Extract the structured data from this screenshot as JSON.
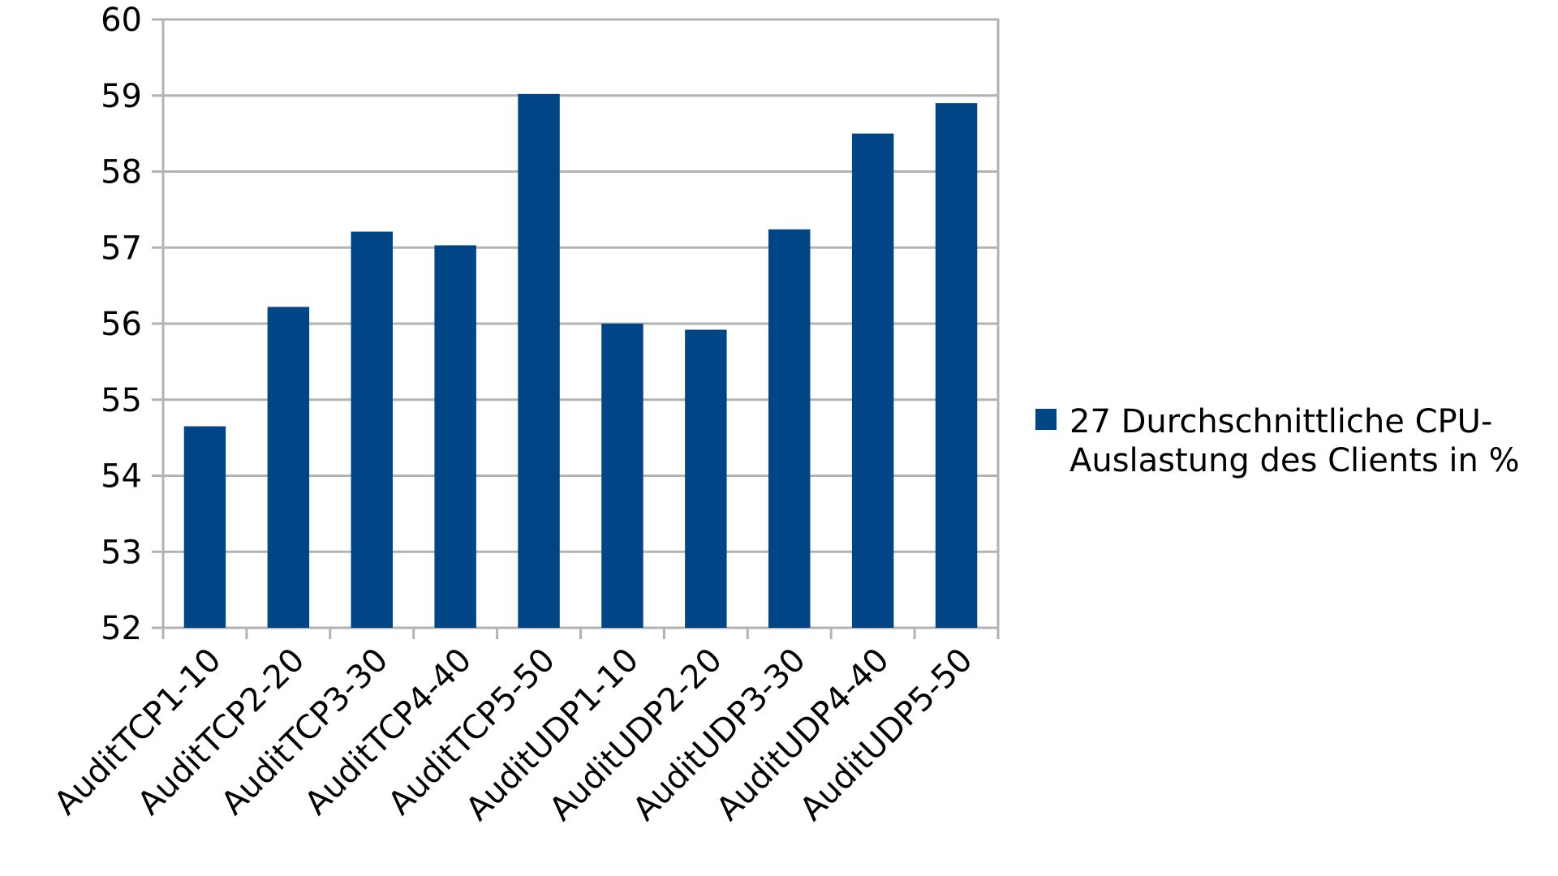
{
  "chart_data": {
    "type": "bar",
    "categories": [
      "AuditTCP1-10",
      "AuditTCP2-20",
      "AuditTCP3-30",
      "AuditTCP4-40",
      "AuditTCP5-50",
      "AuditUDP1-10",
      "AuditUDP2-20",
      "AuditUDP3-30",
      "AuditUDP4-40",
      "AuditUDP5-50"
    ],
    "series": [
      {
        "name": "27 Durchschnittliche CPU-Auslastung des Clients in %",
        "values": [
          54.65,
          56.22,
          57.21,
          57.03,
          59.02,
          56.0,
          55.92,
          57.24,
          58.5,
          58.9
        ],
        "color": "#004586"
      }
    ],
    "ylim": [
      52,
      60
    ],
    "yticks": [
      "52",
      "53",
      "54",
      "55",
      "56",
      "57",
      "58",
      "59",
      "60"
    ],
    "title": "",
    "xlabel": "",
    "ylabel": "",
    "grid": true,
    "legend_position": "right",
    "grid_color": "#b3b3b3",
    "axis_color": "#b3b3b3"
  },
  "legend": {
    "label_line1": "27 Durchschnittliche CPU-",
    "label_line2": "Auslastung des Clients in %"
  }
}
